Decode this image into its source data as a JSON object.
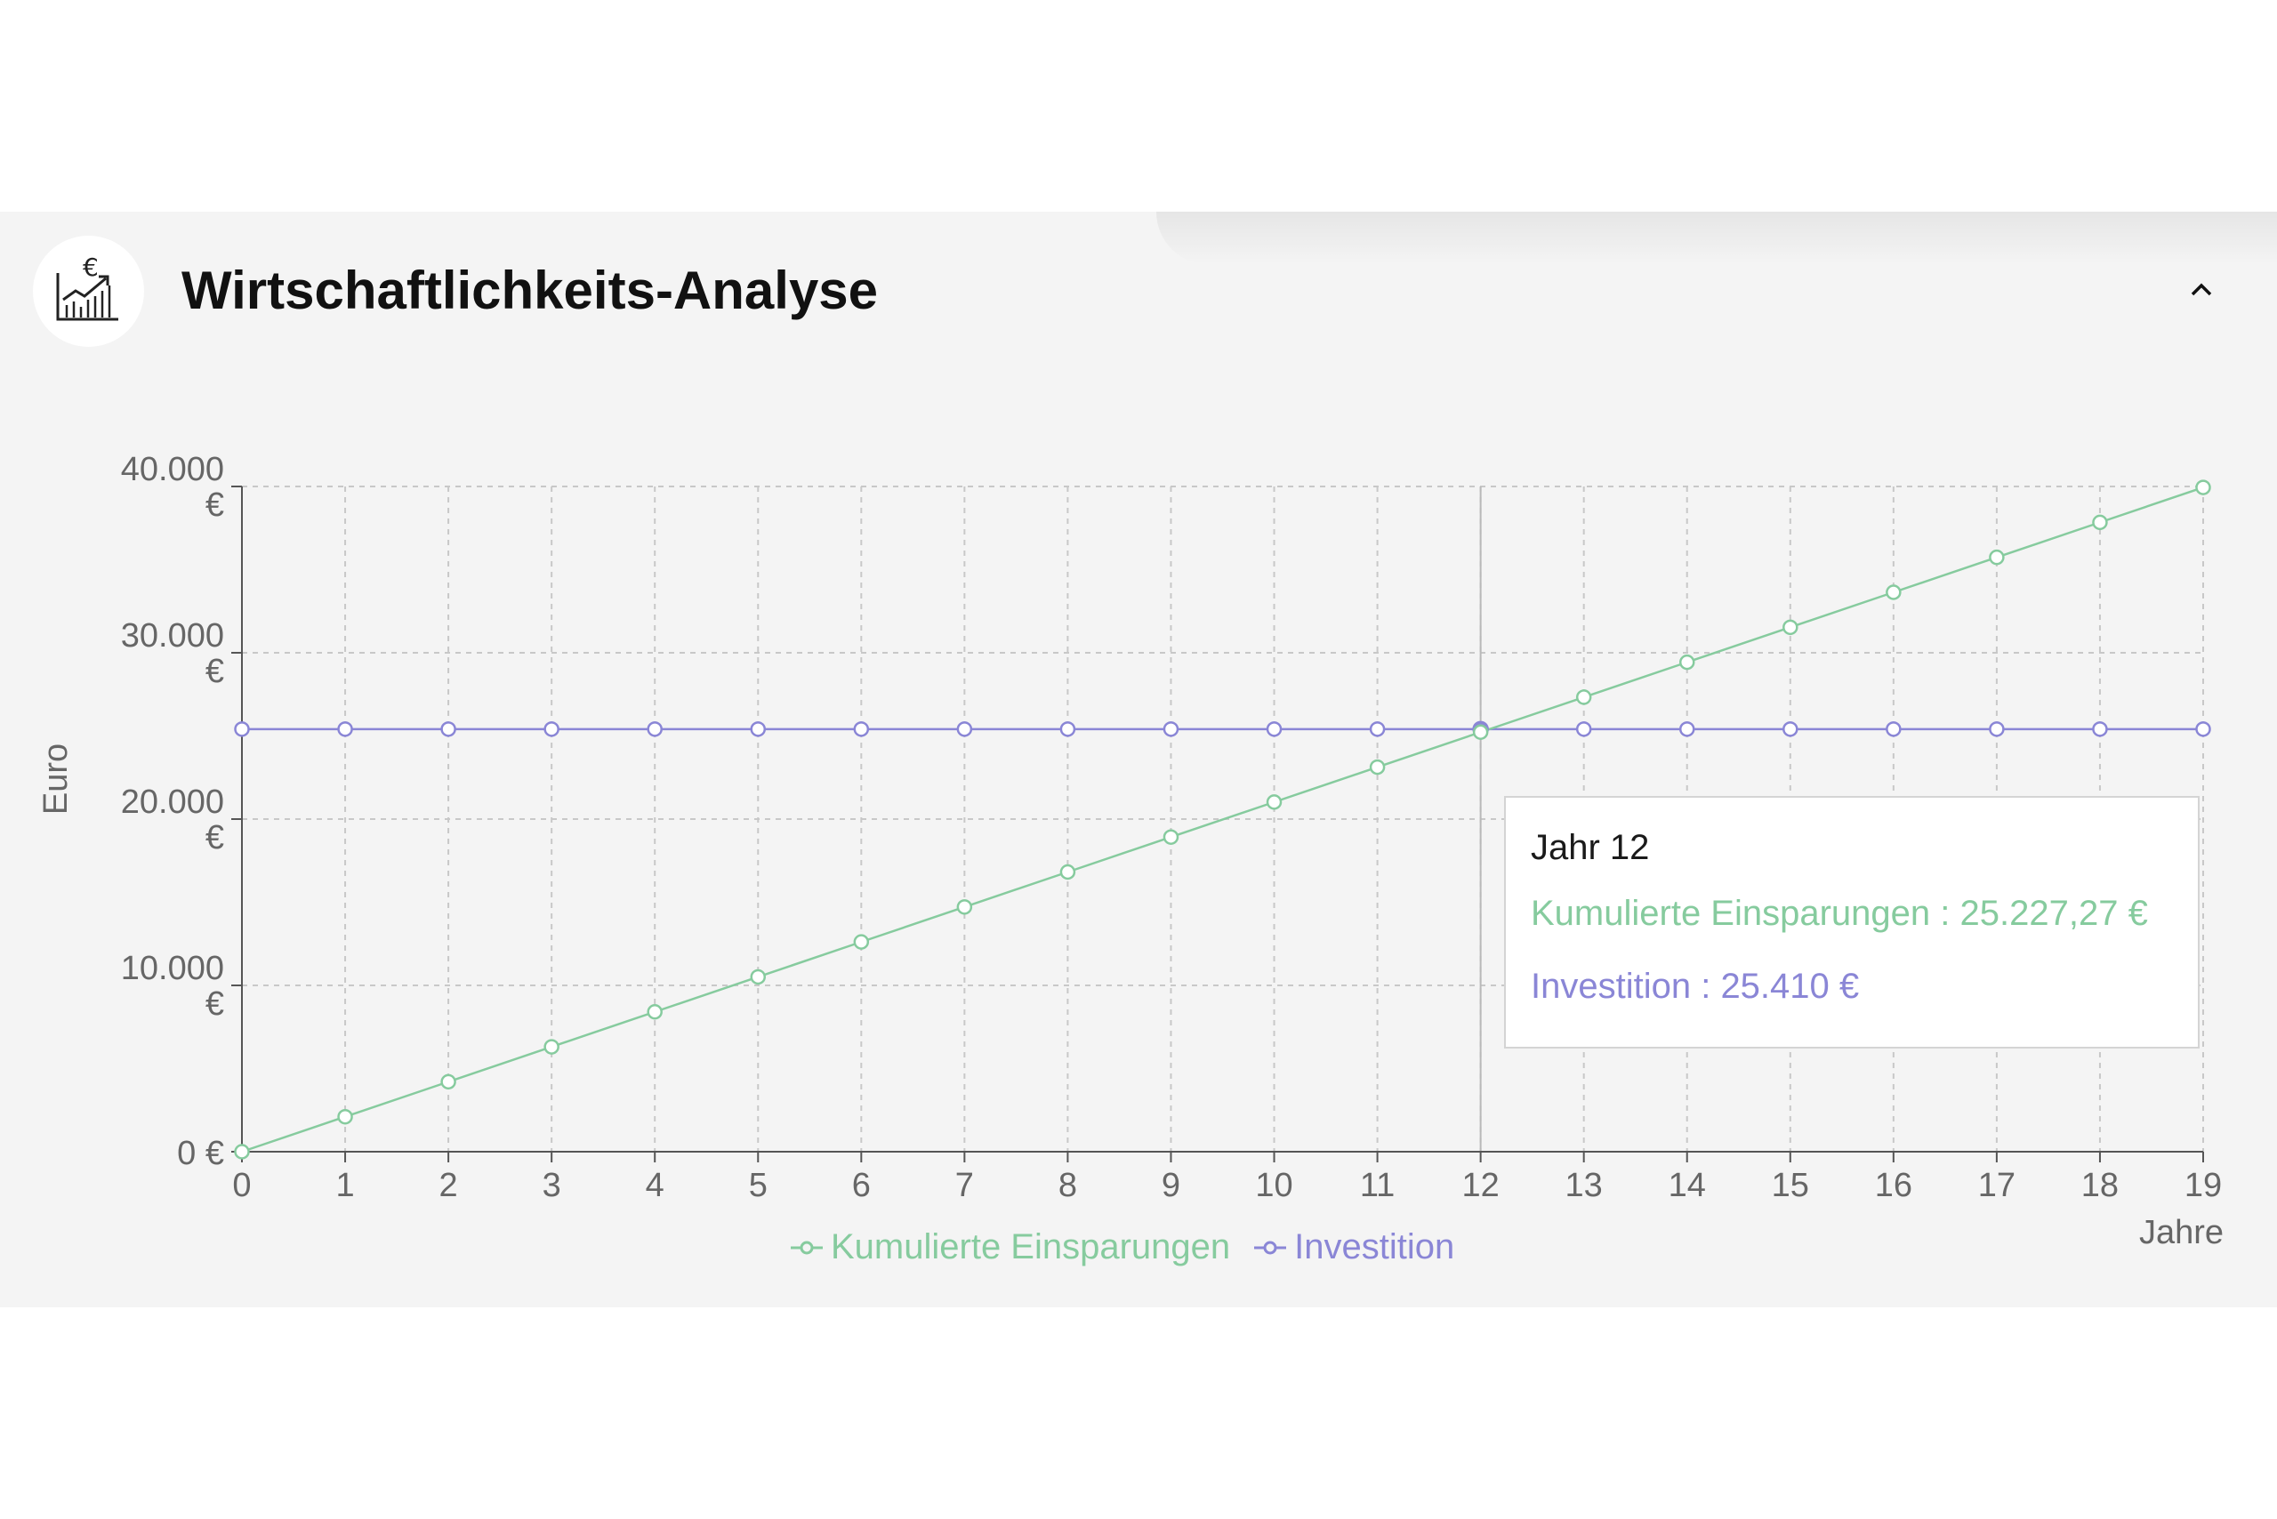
{
  "header": {
    "title": "Wirtschaftlichkeits-Analyse",
    "icon": "chart-euro-icon",
    "collapse_icon": "chevron-up-icon"
  },
  "colors": {
    "savings": "#86cb9e",
    "investment": "#8a86d6",
    "grid": "#c8c8c8",
    "axis": "#555555",
    "text": "#666666"
  },
  "chart_data": {
    "type": "line",
    "title": "",
    "xlabel": "Jahre",
    "ylabel": "Euro",
    "x": [
      0,
      1,
      2,
      3,
      4,
      5,
      6,
      7,
      8,
      9,
      10,
      11,
      12,
      13,
      14,
      15,
      16,
      17,
      18,
      19
    ],
    "ylim": [
      0,
      40000
    ],
    "yticks": [
      {
        "value": 0,
        "label_lines": [
          "0 €"
        ]
      },
      {
        "value": 10000,
        "label_lines": [
          "10.000",
          "€"
        ]
      },
      {
        "value": 20000,
        "label_lines": [
          "20.000",
          "€"
        ]
      },
      {
        "value": 30000,
        "label_lines": [
          "30.000",
          "€"
        ]
      },
      {
        "value": 40000,
        "label_lines": [
          "40.000",
          "€"
        ]
      }
    ],
    "grid": true,
    "legend_position": "bottom",
    "series": [
      {
        "name": "Kumulierte Einsparungen",
        "color": "#86cb9e",
        "values": [
          0,
          2102.27,
          4204.55,
          6306.82,
          8409.09,
          10511.36,
          12613.64,
          14715.91,
          16818.18,
          18920.45,
          21022.73,
          23125.0,
          25227.27,
          27329.55,
          29431.82,
          31534.09,
          33636.36,
          35738.64,
          37840.91,
          39943.18
        ]
      },
      {
        "name": "Investition",
        "color": "#8a86d6",
        "values": [
          25410,
          25410,
          25410,
          25410,
          25410,
          25410,
          25410,
          25410,
          25410,
          25410,
          25410,
          25410,
          25410,
          25410,
          25410,
          25410,
          25410,
          25410,
          25410,
          25410
        ]
      }
    ],
    "hover_index": 12
  },
  "tooltip": {
    "title": "Jahr 12",
    "line1": "Kumulierte Einsparungen : 25.227,27 €",
    "line2": "Investition : 25.410 €"
  },
  "legend": {
    "item1": "Kumulierte Einsparungen",
    "item2": "Investition"
  }
}
